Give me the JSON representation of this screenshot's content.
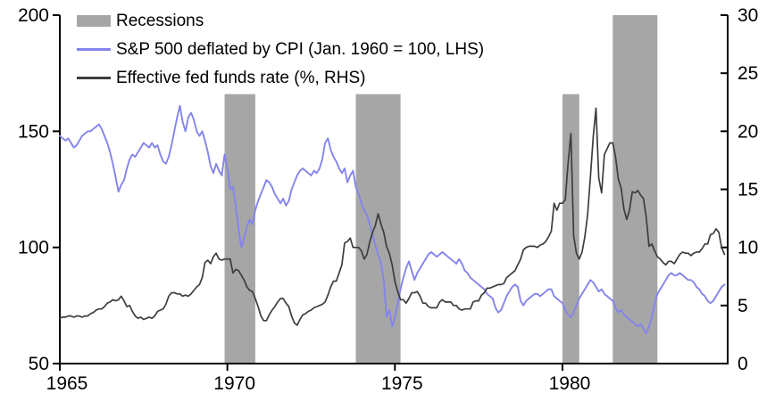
{
  "chart_data": {
    "type": "line",
    "title": "",
    "legend": [
      {
        "label": "Recessions",
        "color": "#a6a6a6",
        "swatch": "box"
      },
      {
        "label": "S&P 500 deflated by CPI (Jan. 1960 = 100, LHS)",
        "color": "#8484ec",
        "swatch": "line"
      },
      {
        "label": "Effective fed funds rate (%, RHS)",
        "color": "#3d3d3d",
        "swatch": "line"
      }
    ],
    "x_axis": {
      "range": [
        1965,
        1984.93
      ],
      "ticks": [
        1965,
        1970,
        1975,
        1980
      ],
      "tick_labels": [
        "1965",
        "1970",
        "1975",
        "1980"
      ]
    },
    "left_axis": {
      "range": [
        50,
        200
      ],
      "ticks": [
        50,
        100,
        150,
        200
      ],
      "tick_labels": [
        "50",
        "100",
        "150",
        "200"
      ]
    },
    "right_axis": {
      "range": [
        0,
        30
      ],
      "ticks": [
        0,
        5,
        10,
        15,
        20,
        25,
        30
      ],
      "tick_labels": [
        "0",
        "5",
        "10",
        "15",
        "20",
        "25",
        "30"
      ]
    },
    "recession_color": "#a6a6a6",
    "recessions": [
      {
        "start": 1969.917,
        "end": 1970.833,
        "top_lhs": 166
      },
      {
        "start": 1973.833,
        "end": 1975.167,
        "top_lhs": 166
      },
      {
        "start": 1980.0,
        "end": 1980.5,
        "top_lhs": 166
      },
      {
        "start": 1981.5,
        "end": 1982.833,
        "top_lhs": 200
      }
    ],
    "series": [
      {
        "name": "S&P 500 deflated by CPI (Jan. 1960 = 100, LHS)",
        "axis": "left",
        "color": "#8484ec",
        "width": 1.9,
        "start_year": 1965,
        "interval_years": 0.0833333,
        "values": [
          148,
          147,
          146,
          147,
          145,
          143,
          144,
          146,
          148,
          149,
          150,
          150,
          151,
          152,
          153,
          151,
          148,
          145,
          141,
          136,
          130,
          124,
          127,
          129,
          134,
          138,
          140,
          139,
          141,
          143,
          145,
          144,
          143,
          145,
          143,
          144,
          140,
          137,
          136,
          139,
          144,
          150,
          156,
          161,
          154,
          150,
          156,
          158,
          155,
          150,
          148,
          150,
          146,
          141,
          135,
          132,
          136,
          133,
          131,
          140,
          134,
          125,
          126,
          118,
          108,
          100,
          104,
          109,
          112,
          110,
          116,
          120,
          123,
          126,
          129,
          128,
          126,
          123,
          121,
          119,
          121,
          118,
          120,
          125,
          128,
          131,
          133,
          134,
          133,
          132,
          131,
          133,
          132,
          134,
          138,
          145,
          147,
          142,
          139,
          137,
          134,
          132,
          134,
          128,
          131,
          133,
          126,
          123,
          119,
          116,
          114,
          110,
          105,
          101,
          97,
          93,
          86,
          70,
          73,
          66,
          70,
          76,
          82,
          87,
          91,
          94,
          90,
          86,
          89,
          91,
          93,
          95,
          97,
          98,
          97,
          96,
          97,
          98,
          97,
          96,
          95,
          94,
          93,
          95,
          93,
          90,
          89,
          87,
          86,
          85,
          84,
          83,
          82,
          80,
          79,
          78,
          74,
          72,
          73,
          76,
          79,
          81,
          83,
          84,
          83,
          77,
          75,
          77,
          78,
          79,
          80,
          80,
          79,
          80,
          81,
          82,
          82,
          79,
          78,
          77,
          76,
          73,
          71,
          70,
          72,
          75,
          78,
          80,
          82,
          84,
          86,
          85,
          83,
          81,
          82,
          80,
          79,
          78,
          77,
          74,
          72,
          73,
          71,
          70,
          69,
          68,
          67,
          66,
          67,
          65,
          63,
          66,
          70,
          76,
          80,
          82,
          84,
          86,
          88,
          89,
          88,
          88,
          89,
          88,
          87,
          86,
          86,
          85,
          83,
          82,
          80,
          79,
          77,
          76,
          77,
          79,
          81,
          83,
          84
        ]
      },
      {
        "name": "Effective fed funds rate (%, RHS)",
        "axis": "right",
        "color": "#3d3d3d",
        "width": 1.7,
        "start_year": 1965,
        "interval_years": 0.0833333,
        "values": [
          3.9,
          4.0,
          4.0,
          4.1,
          4.1,
          4.0,
          4.1,
          4.1,
          4.0,
          4.1,
          4.1,
          4.3,
          4.4,
          4.6,
          4.7,
          4.7,
          4.9,
          5.2,
          5.3,
          5.5,
          5.4,
          5.5,
          5.8,
          5.4,
          4.9,
          5.0,
          4.5,
          4.1,
          3.9,
          4.0,
          3.8,
          3.9,
          4.0,
          3.9,
          4.1,
          4.5,
          4.6,
          4.7,
          5.1,
          5.8,
          6.1,
          6.1,
          6.0,
          6.0,
          5.8,
          5.9,
          5.8,
          6.0,
          6.3,
          6.6,
          6.8,
          7.4,
          8.7,
          8.9,
          8.6,
          9.2,
          9.5,
          9.0,
          8.9,
          9.0,
          9.0,
          9.0,
          7.8,
          8.1,
          8.0,
          7.6,
          7.2,
          6.6,
          6.3,
          6.2,
          5.6,
          4.9,
          4.1,
          3.7,
          3.7,
          4.2,
          4.6,
          4.9,
          5.3,
          5.6,
          5.6,
          5.2,
          4.9,
          4.1,
          3.5,
          3.3,
          3.8,
          4.2,
          4.3,
          4.5,
          4.6,
          4.8,
          4.9,
          5.0,
          5.1,
          5.3,
          5.9,
          6.6,
          7.1,
          7.1,
          7.8,
          8.5,
          10.4,
          10.5,
          10.8,
          10.0,
          10.0,
          10.0,
          9.7,
          9.0,
          9.4,
          10.5,
          11.3,
          11.9,
          12.9,
          12.0,
          11.3,
          10.1,
          9.5,
          8.5,
          7.1,
          6.2,
          5.5,
          5.5,
          5.2,
          5.6,
          6.1,
          6.1,
          6.2,
          5.8,
          5.2,
          5.2,
          4.9,
          4.8,
          4.8,
          4.8,
          5.3,
          5.5,
          5.3,
          5.3,
          5.3,
          5.0,
          5.0,
          4.7,
          4.6,
          4.7,
          4.7,
          4.7,
          5.3,
          5.4,
          5.4,
          5.9,
          6.1,
          6.5,
          6.5,
          6.6,
          6.7,
          6.8,
          6.8,
          6.9,
          7.4,
          7.6,
          7.8,
          8.0,
          8.5,
          9.0,
          9.8,
          10.0,
          10.1,
          10.1,
          10.1,
          10.0,
          10.2,
          10.3,
          10.5,
          10.9,
          11.4,
          13.8,
          13.2,
          13.8,
          13.8,
          14.1,
          17.2,
          19.8,
          11.0,
          9.5,
          9.0,
          9.6,
          10.9,
          12.8,
          16.0,
          19.5,
          22.0,
          16.0,
          14.7,
          18.0,
          18.5,
          19.0,
          19.0,
          17.8,
          15.9,
          15.1,
          13.3,
          12.4,
          13.2,
          14.8,
          14.7,
          14.9,
          14.5,
          14.2,
          12.6,
          10.1,
          10.3,
          9.7,
          9.2,
          9.0,
          8.7,
          8.5,
          8.8,
          8.8,
          8.6,
          9.0,
          9.4,
          9.6,
          9.5,
          9.5,
          9.3,
          9.5,
          9.6,
          9.6,
          9.9,
          10.3,
          10.3,
          11.1,
          11.2,
          11.6,
          11.3,
          10.0,
          9.4
        ]
      }
    ],
    "grid": "off",
    "legend_position": "top-left-inside"
  }
}
